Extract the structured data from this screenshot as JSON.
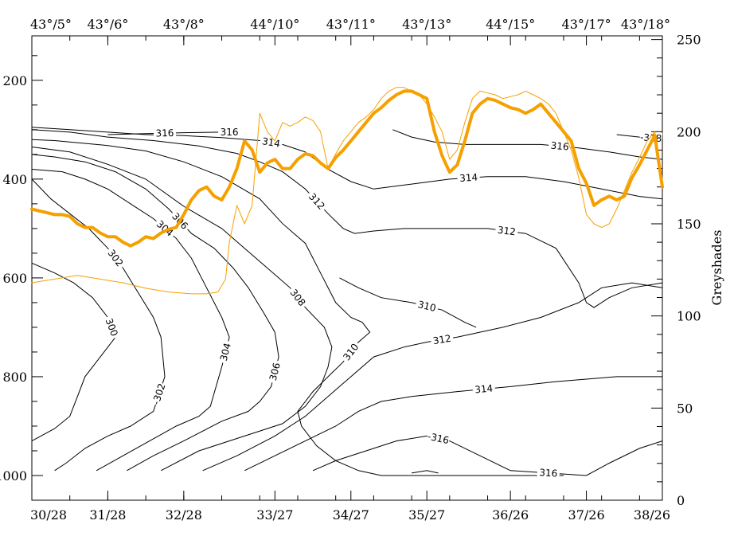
{
  "chart_data": {
    "type": "line",
    "title": "",
    "colors": {
      "contour": "#000000",
      "greyshades": "#f5a000",
      "background": "#ffffff"
    },
    "x": {
      "ticks": [
        {
          "value": 0,
          "bottom": "30/28",
          "top": "43°/5°"
        },
        {
          "value": 1,
          "bottom": "31/28",
          "top": "43°/6°"
        },
        {
          "value": 2,
          "bottom": "32/28",
          "top": "43°/8°"
        },
        {
          "value": 3.2,
          "bottom": "33/27",
          "top": "44°/10°"
        },
        {
          "value": 4.2,
          "bottom": "34/27",
          "top": "43°/11°"
        },
        {
          "value": 5.2,
          "bottom": "35/27",
          "top": "43°/13°"
        },
        {
          "value": 6.3,
          "bottom": "36/26",
          "top": "44°/15°"
        },
        {
          "value": 7.3,
          "bottom": "37/26",
          "top": "43°/17°"
        },
        {
          "value": 8.3,
          "bottom": "38/26",
          "top": "43°/18°"
        }
      ],
      "range": [
        0,
        8.3
      ]
    },
    "y_left": {
      "label": "",
      "ticks": [
        200,
        400,
        600,
        800,
        1000
      ],
      "range": [
        1050,
        110
      ],
      "inverted": true
    },
    "y_right": {
      "label": "Greyshades",
      "ticks": [
        0,
        50,
        100,
        150,
        200,
        250
      ],
      "range": [
        0,
        252
      ]
    },
    "contour_series": [
      {
        "name": "300",
        "labels": [
          "300"
        ],
        "x": [
          0,
          0.3,
          0.5,
          0.6,
          0.7,
          0.95,
          1.1,
          1.0,
          0.8,
          0.55,
          0.3,
          0
        ],
        "y": [
          930,
          905,
          880,
          840,
          800,
          750,
          720,
          680,
          640,
          610,
          590,
          570
        ]
      },
      {
        "name": "302",
        "labels": [
          "-302",
          "302"
        ],
        "x": [
          0.3,
          0.45,
          0.7,
          1.0,
          1.3,
          1.6,
          1.75,
          1.7,
          1.6,
          1.4,
          1.2,
          1.0,
          0.75,
          0.5,
          0.25,
          0
        ],
        "y": [
          990,
          975,
          945,
          920,
          900,
          870,
          800,
          720,
          680,
          630,
          580,
          540,
          500,
          470,
          440,
          400
        ]
      },
      {
        "name": "304",
        "labels": [
          "304",
          "304"
        ],
        "x": [
          0.85,
          1.2,
          1.55,
          1.9,
          2.2,
          2.35,
          2.5,
          2.6,
          2.5,
          2.3,
          2.1,
          1.9,
          1.6,
          1.3,
          1.0,
          0.7,
          0.4,
          0
        ],
        "y": [
          990,
          960,
          930,
          900,
          880,
          860,
          780,
          720,
          680,
          620,
          560,
          520,
          480,
          450,
          420,
          400,
          385,
          380
        ]
      },
      {
        "name": "306",
        "labels": [
          "306",
          "306"
        ],
        "x": [
          1.25,
          1.6,
          2.0,
          2.5,
          2.85,
          3.0,
          3.15,
          3.25,
          3.2,
          3.05,
          2.85,
          2.65,
          2.4,
          2.1,
          1.8,
          1.5,
          1.1,
          0.7,
          0.3,
          0
        ],
        "y": [
          990,
          960,
          930,
          890,
          870,
          850,
          820,
          760,
          710,
          670,
          620,
          580,
          540,
          510,
          460,
          420,
          385,
          365,
          355,
          350
        ]
      },
      {
        "name": "308",
        "labels": [
          "308"
        ],
        "x": [
          1.7,
          2.2,
          2.8,
          3.3,
          3.6,
          3.8,
          3.9,
          3.95,
          3.85,
          3.6,
          3.4,
          3.1,
          2.8,
          2.5,
          2.0,
          1.5,
          1.0,
          0.5,
          0
        ],
        "y": [
          990,
          950,
          920,
          895,
          860,
          820,
          780,
          740,
          700,
          660,
          620,
          580,
          540,
          500,
          455,
          400,
          370,
          345,
          335
        ]
      },
      {
        "name": "310",
        "labels": [
          "310"
        ],
        "x": [
          0,
          0.3,
          1.0,
          1.5,
          2.0,
          2.5,
          3.0,
          3.3,
          3.6,
          3.8,
          4.0,
          4.2,
          4.35,
          4.45,
          4.3,
          4.1,
          3.9,
          3.7,
          3.5,
          3.55,
          3.75,
          4.0,
          4.3,
          4.6,
          4.9,
          5.4,
          6.0,
          6.5,
          7.0
        ],
        "y": [
          320,
          322,
          332,
          343,
          365,
          395,
          440,
          490,
          530,
          590,
          650,
          680,
          690,
          710,
          730,
          770,
          800,
          830,
          870,
          900,
          940,
          970,
          990,
          1000,
          1000,
          1000,
          1000,
          1000,
          1000
        ]
      },
      {
        "name": "310b",
        "labels": [
          "310"
        ],
        "x": [
          4.05,
          4.3,
          4.6,
          5.0,
          5.4,
          5.7,
          5.85
        ],
        "y": [
          600,
          620,
          640,
          650,
          665,
          690,
          700
        ]
      },
      {
        "name": "312",
        "labels": [
          "312",
          "312"
        ],
        "x": [
          0,
          0.5,
          1.0,
          1.6,
          2.2,
          2.7,
          3.0,
          3.3,
          3.6,
          3.9,
          4.1,
          4.25,
          4.5,
          4.9,
          5.5,
          6.0,
          6.5,
          6.9,
          7.2,
          7.3,
          7.4,
          7.6,
          7.9,
          8.3
        ],
        "y": [
          300,
          305,
          315,
          322,
          333,
          348,
          365,
          385,
          420,
          470,
          500,
          510,
          505,
          500,
          500,
          500,
          510,
          540,
          610,
          650,
          660,
          640,
          620,
          610
        ]
      },
      {
        "name": "314",
        "labels": [
          "314",
          "314"
        ],
        "x": [
          0,
          0.5,
          1.0,
          1.5,
          2.0,
          2.5,
          3.0,
          3.3,
          3.6,
          3.9,
          4.2,
          4.5,
          5.0,
          5.5,
          6.0,
          6.5,
          7.0,
          7.5,
          8.0,
          8.3
        ],
        "y": [
          295,
          300,
          305,
          310,
          312,
          316,
          322,
          330,
          345,
          380,
          405,
          420,
          410,
          400,
          395,
          395,
          405,
          420,
          435,
          440
        ]
      },
      {
        "name": "316",
        "labels": [
          "316",
          "316"
        ],
        "x": [
          1.0,
          1.5,
          2.0,
          2.5,
          2.7
        ],
        "y": [
          310,
          308,
          306,
          305,
          305
        ]
      },
      {
        "name": "316b",
        "labels": [
          "316"
        ],
        "x": [
          4.75,
          5.0,
          5.3,
          5.7,
          6.2,
          6.7,
          7.2,
          7.6,
          8.0,
          8.3
        ],
        "y": [
          300,
          315,
          325,
          330,
          330,
          330,
          337,
          345,
          355,
          360
        ]
      },
      {
        "name": "318",
        "labels": [
          "-318"
        ],
        "x": [
          7.7,
          8.0,
          8.3
        ],
        "y": [
          310,
          315,
          318
        ]
      },
      {
        "name": "lower-312",
        "labels": [
          "312"
        ],
        "x": [
          2.25,
          2.7,
          3.2,
          3.6,
          3.9,
          4.2,
          4.5,
          4.9,
          5.2,
          5.6,
          6.2,
          6.7,
          7.2,
          7.5,
          7.9,
          8.3
        ],
        "y": [
          990,
          960,
          920,
          880,
          840,
          800,
          760,
          740,
          730,
          720,
          700,
          680,
          650,
          620,
          610,
          620
        ]
      },
      {
        "name": "lower-314",
        "labels": [
          "314"
        ],
        "x": [
          2.8,
          3.2,
          3.6,
          4.0,
          4.3,
          4.6,
          5.0,
          5.6,
          6.3,
          6.9,
          7.3,
          7.7,
          8.0,
          8.3
        ],
        "y": [
          990,
          960,
          930,
          900,
          870,
          850,
          840,
          830,
          820,
          810,
          805,
          800,
          800,
          800
        ]
      },
      {
        "name": "lower-316",
        "labels": [
          "-316",
          "316"
        ],
        "x": [
          3.7,
          4.0,
          4.4,
          4.8,
          5.2,
          5.5,
          5.9,
          6.3,
          7.3,
          7.6,
          8.0,
          8.3
        ],
        "y": [
          990,
          970,
          950,
          930,
          920,
          930,
          960,
          990,
          1000,
          975,
          945,
          930
        ]
      },
      {
        "name": "lower-318",
        "labels": [],
        "x": [
          5.0,
          5.2,
          5.35
        ],
        "y": [
          995,
          990,
          995
        ]
      }
    ],
    "greyshade_series": [
      {
        "name": "thick",
        "style": "thick",
        "x": [
          0,
          0.1,
          0.2,
          0.3,
          0.4,
          0.5,
          0.6,
          0.7,
          0.8,
          0.9,
          1.0,
          1.1,
          1.2,
          1.3,
          1.4,
          1.5,
          1.6,
          1.7,
          1.8,
          1.9,
          2.0,
          2.1,
          2.2,
          2.3,
          2.4,
          2.5,
          2.6,
          2.7,
          2.8,
          2.9,
          3.0,
          3.1,
          3.2,
          3.3,
          3.4,
          3.5,
          3.6,
          3.7,
          3.8,
          3.9,
          4.0,
          4.1,
          4.2,
          4.3,
          4.4,
          4.5,
          4.6,
          4.7,
          4.8,
          4.9,
          5.0,
          5.1,
          5.2,
          5.3,
          5.4,
          5.5,
          5.6,
          5.7,
          5.8,
          5.9,
          6.0,
          6.1,
          6.2,
          6.3,
          6.4,
          6.5,
          6.6,
          6.7,
          6.8,
          6.9,
          7.0,
          7.1,
          7.2,
          7.3,
          7.4,
          7.5,
          7.6,
          7.7,
          7.8,
          7.9,
          8.0,
          8.1,
          8.2,
          8.3
        ],
        "values": [
          158,
          157,
          156,
          155,
          155,
          154,
          150,
          148,
          148,
          145,
          143,
          143,
          140,
          138,
          140,
          143,
          142,
          145,
          147,
          148,
          155,
          163,
          168,
          170,
          165,
          163,
          170,
          180,
          195,
          190,
          178,
          183,
          185,
          180,
          180,
          185,
          188,
          187,
          183,
          180,
          186,
          190,
          195,
          200,
          205,
          210,
          213,
          217,
          220,
          222,
          222,
          220,
          218,
          200,
          187,
          178,
          182,
          195,
          210,
          215,
          218,
          217,
          215,
          213,
          212,
          210,
          212,
          215,
          210,
          205,
          200,
          195,
          180,
          172,
          160,
          163,
          165,
          163,
          165,
          175,
          182,
          190,
          198,
          170
        ],
        "source": "estimated"
      },
      {
        "name": "thin",
        "style": "thin",
        "x": [
          0,
          0.3,
          0.6,
          0.9,
          1.2,
          1.5,
          1.8,
          2.1,
          2.3,
          2.45,
          2.55,
          2.6,
          2.7,
          2.8,
          2.9,
          3.0,
          3.1,
          3.2,
          3.3,
          3.4,
          3.5,
          3.6,
          3.7,
          3.8,
          3.9,
          4.0,
          4.1,
          4.2,
          4.3,
          4.4,
          4.5,
          4.6,
          4.7,
          4.8,
          4.9,
          5.0,
          5.1,
          5.2,
          5.3,
          5.4,
          5.5,
          5.6,
          5.7,
          5.8,
          5.9,
          6.0,
          6.1,
          6.2,
          6.3,
          6.4,
          6.5,
          6.6,
          6.7,
          6.8,
          6.9,
          7.0,
          7.1,
          7.2,
          7.3,
          7.4,
          7.5,
          7.6,
          7.7,
          7.8,
          7.9,
          8.0,
          8.1,
          8.2,
          8.3
        ],
        "values": [
          118,
          120,
          122,
          120,
          118,
          115,
          113,
          112,
          112,
          113,
          120,
          140,
          160,
          150,
          160,
          210,
          200,
          195,
          205,
          203,
          205,
          208,
          206,
          200,
          180,
          188,
          195,
          200,
          205,
          208,
          212,
          218,
          222,
          224,
          224,
          222,
          220,
          215,
          208,
          200,
          185,
          190,
          205,
          218,
          222,
          221,
          220,
          218,
          219,
          220,
          222,
          220,
          218,
          215,
          210,
          200,
          190,
          175,
          155,
          150,
          148,
          150,
          158,
          168,
          178,
          186,
          195,
          200,
          172
        ],
        "source": "estimated"
      }
    ]
  }
}
